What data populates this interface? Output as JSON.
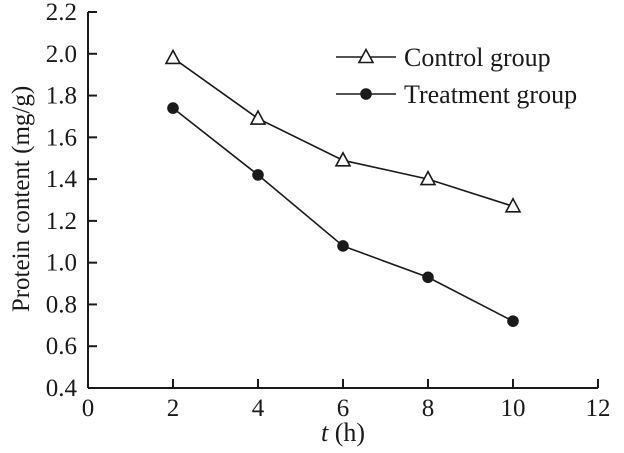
{
  "chart_data": {
    "type": "line",
    "x": [
      2,
      4,
      6,
      8,
      10
    ],
    "series": [
      {
        "name": "Control group",
        "marker": "triangle-open",
        "values": [
          1.98,
          1.69,
          1.49,
          1.4,
          1.27
        ]
      },
      {
        "name": "Treatment group",
        "marker": "circle-filled",
        "values": [
          1.74,
          1.42,
          1.08,
          0.93,
          0.72
        ]
      }
    ],
    "title": "",
    "xlabel_italic": "t",
    "xlabel_unit": " (h)",
    "ylabel": "Protein content (mg/g)",
    "xlim": [
      0,
      12
    ],
    "ylim": [
      0.4,
      2.2
    ],
    "xticks": [
      0,
      2,
      4,
      6,
      8,
      10,
      12
    ],
    "yticks": [
      0.4,
      0.6,
      0.8,
      1.0,
      1.2,
      1.4,
      1.6,
      1.8,
      2.0,
      2.2
    ],
    "grid": false,
    "legend_position": "top-right-inside",
    "axis_color": "#1a1a1a",
    "line_color": "#1a1a1a",
    "background": "#ffffff"
  }
}
